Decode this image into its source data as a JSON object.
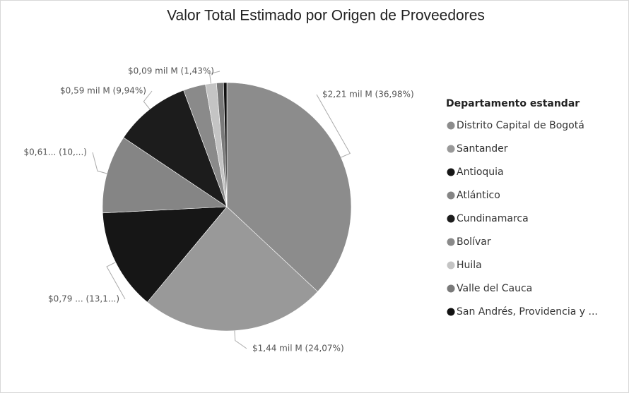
{
  "chart_data": {
    "type": "pie",
    "title": "Valor Total Estimado por Origen de Proveedores",
    "legend_title": "Departamento estandar",
    "legend": "right",
    "categories": [
      "Distrito Capital de Bogotá",
      "Santander",
      "Antioquia",
      "Atlántico",
      "Cundinamarca",
      "Bolívar",
      "Huila",
      "Valle del Cauca",
      "San Andrés, Providencia y ..."
    ],
    "values": [
      36.98,
      24.07,
      13.15,
      10.2,
      9.94,
      2.9,
      1.43,
      0.9,
      0.43
    ],
    "value_labels": [
      "$2,21 mil M (36,98%)",
      "$1,44 mil M (24,07%)",
      "$0,79 ... (13,1...)",
      "$0,61... (10,...)",
      "$0,59 mil M (9,94%)",
      null,
      "$0,09 mil M (1,43%)",
      null,
      null
    ],
    "colors": [
      "#8c8c8c",
      "#999999",
      "#161616",
      "#858585",
      "#1c1c1c",
      "#8a8a8a",
      "#c4c4c4",
      "#7a7a7a",
      "#111111"
    ]
  }
}
